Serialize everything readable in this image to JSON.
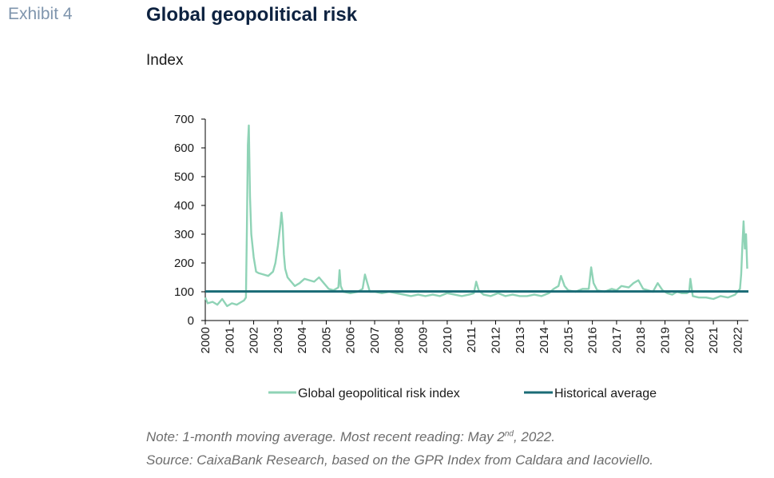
{
  "exhibit_label": "Exhibit 4",
  "title": "Global geopolitical risk",
  "unit_label": "Index",
  "note": {
    "prefix": "Note: 1-month moving average. Most recent reading: May 2",
    "superscript": "nd",
    "suffix": ", 2022."
  },
  "source": "Source: CaixaBank Research, based on the GPR Index from Caldara and Iacoviello.",
  "colors": {
    "risk_line": "#8fd3b6",
    "average_line": "#1a6b76",
    "axis": "#000000"
  },
  "chart_data": {
    "type": "line",
    "title": "Global geopolitical risk",
    "ylabel": "Index",
    "ylim": [
      0,
      700
    ],
    "yticks": [
      0,
      100,
      200,
      300,
      400,
      500,
      600,
      700
    ],
    "xlim": [
      2000,
      2022.45
    ],
    "xticks": [
      2000,
      2001,
      2002,
      2003,
      2004,
      2005,
      2006,
      2007,
      2008,
      2009,
      2010,
      2011,
      2012,
      2013,
      2014,
      2015,
      2016,
      2017,
      2018,
      2019,
      2020,
      2021,
      2022
    ],
    "xtick_labels": [
      "2000",
      "2001",
      "2002",
      "2003",
      "2004",
      "2005",
      "2006",
      "2007",
      "2008",
      "2009",
      "2010",
      "2011",
      "2012",
      "2013",
      "2014",
      "2015",
      "2016",
      "2017",
      "2018",
      "2019",
      "2020",
      "2021",
      "2022"
    ],
    "grid": false,
    "legend_position": "bottom",
    "series": [
      {
        "name": "Global geopolitical risk index",
        "x": [
          2000,
          2000.1,
          2000.3,
          2000.5,
          2000.7,
          2000.9,
          2001.1,
          2001.3,
          2001.5,
          2001.6,
          2001.68,
          2001.72,
          2001.76,
          2001.8,
          2001.85,
          2001.9,
          2002.0,
          2002.1,
          2002.2,
          2002.4,
          2002.6,
          2002.8,
          2002.9,
          2003.0,
          2003.1,
          2003.15,
          2003.2,
          2003.25,
          2003.3,
          2003.4,
          2003.5,
          2003.7,
          2003.9,
          2004.1,
          2004.3,
          2004.5,
          2004.7,
          2004.9,
          2005.1,
          2005.3,
          2005.5,
          2005.55,
          2005.6,
          2005.7,
          2006.0,
          2006.3,
          2006.5,
          2006.6,
          2006.7,
          2006.8,
          2007.0,
          2007.3,
          2007.6,
          2007.9,
          2008.2,
          2008.5,
          2008.8,
          2009.1,
          2009.4,
          2009.7,
          2010.0,
          2010.3,
          2010.6,
          2010.9,
          2011.1,
          2011.2,
          2011.3,
          2011.5,
          2011.8,
          2012.1,
          2012.4,
          2012.7,
          2013.0,
          2013.3,
          2013.6,
          2013.9,
          2014.2,
          2014.4,
          2014.6,
          2014.7,
          2014.85,
          2015.0,
          2015.3,
          2015.6,
          2015.85,
          2015.95,
          2016.05,
          2016.2,
          2016.5,
          2016.8,
          2017.0,
          2017.2,
          2017.5,
          2017.7,
          2017.9,
          2018.1,
          2018.3,
          2018.5,
          2018.7,
          2018.9,
          2019.1,
          2019.3,
          2019.5,
          2019.7,
          2019.9,
          2020.0,
          2020.05,
          2020.15,
          2020.4,
          2020.7,
          2021.0,
          2021.3,
          2021.6,
          2021.9,
          2022.0,
          2022.1,
          2022.15,
          2022.2,
          2022.25,
          2022.3,
          2022.35,
          2022.4
        ],
        "values": [
          80,
          60,
          65,
          55,
          75,
          50,
          60,
          55,
          65,
          70,
          80,
          320,
          610,
          678,
          430,
          300,
          220,
          170,
          165,
          160,
          155,
          170,
          200,
          260,
          330,
          375,
          330,
          230,
          180,
          150,
          140,
          120,
          130,
          145,
          140,
          135,
          150,
          130,
          110,
          105,
          115,
          175,
          120,
          100,
          95,
          100,
          110,
          160,
          130,
          100,
          100,
          95,
          100,
          95,
          90,
          85,
          90,
          85,
          90,
          85,
          95,
          90,
          85,
          90,
          95,
          135,
          105,
          90,
          85,
          95,
          85,
          90,
          85,
          85,
          90,
          85,
          95,
          110,
          120,
          155,
          120,
          105,
          100,
          110,
          110,
          185,
          130,
          105,
          100,
          110,
          105,
          120,
          115,
          130,
          140,
          110,
          105,
          100,
          130,
          105,
          95,
          90,
          100,
          95,
          95,
          100,
          145,
          85,
          80,
          80,
          75,
          85,
          80,
          90,
          100,
          110,
          160,
          260,
          345,
          250,
          300,
          180
        ]
      },
      {
        "name": "Historical average",
        "x": [
          2000,
          2022.45
        ],
        "values": [
          101,
          101
        ]
      }
    ]
  }
}
